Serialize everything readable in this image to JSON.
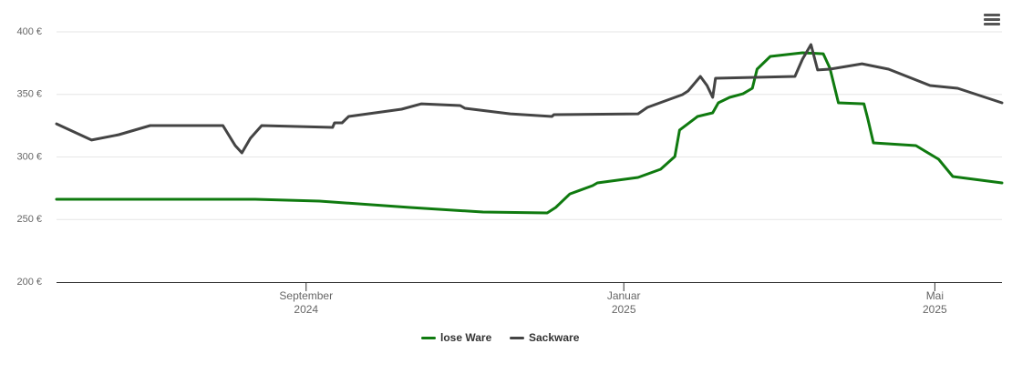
{
  "chart_data": {
    "type": "line",
    "xlim": [
      2024.4,
      2025.4
    ],
    "ylim": [
      200,
      400
    ],
    "xticks": [
      {
        "value": 2024.664,
        "label": "September\n2024"
      },
      {
        "value": 2025.0,
        "label": "Januar\n2025"
      },
      {
        "value": 2025.329,
        "label": "Mai\n2025"
      }
    ],
    "yticks": [
      {
        "value": 200,
        "label": "200 €"
      },
      {
        "value": 250,
        "label": "250 €"
      },
      {
        "value": 300,
        "label": "300 €"
      },
      {
        "value": 350,
        "label": "350 €"
      },
      {
        "value": 400,
        "label": "400 €"
      }
    ],
    "grid": true,
    "legend": "bottom",
    "series": [
      {
        "name": "lose Ware",
        "color": "#0f7a0f",
        "x": [
          2024.4,
          2024.61,
          2024.678,
          2024.774,
          2024.851,
          2024.919,
          2024.928,
          2024.943,
          2024.967,
          2024.972,
          2025.015,
          2025.039,
          2025.054,
          2025.059,
          2025.078,
          2025.094,
          2025.1,
          2025.112,
          2025.126,
          2025.136,
          2025.141,
          2025.155,
          2025.189,
          2025.211,
          2025.218,
          2025.227,
          2025.254,
          2025.258,
          2025.264,
          2025.309,
          2025.333,
          2025.348,
          2025.4
        ],
        "values": [
          266.2,
          266.2,
          264.7,
          259.6,
          256.0,
          255.3,
          259.6,
          270.5,
          277.1,
          279.3,
          283.6,
          290.2,
          300.4,
          321.5,
          332.4,
          335.3,
          343.3,
          347.6,
          350.5,
          354.9,
          370.2,
          380.4,
          383.3,
          382.5,
          370.9,
          343.3,
          342.5,
          330.9,
          311.3,
          309.1,
          298.2,
          284.4,
          279.3
        ]
      },
      {
        "name": "Sackware",
        "color": "#444444",
        "x": [
          2024.4,
          2024.437,
          2024.466,
          2024.499,
          2024.576,
          2024.589,
          2024.596,
          2024.605,
          2024.617,
          2024.692,
          2024.694,
          2024.702,
          2024.709,
          2024.765,
          2024.786,
          2024.827,
          2024.832,
          2024.88,
          2024.924,
          2024.926,
          2025.015,
          2025.025,
          2025.062,
          2025.068,
          2025.081,
          2025.088,
          2025.094,
          2025.097,
          2025.181,
          2025.189,
          2025.198,
          2025.205,
          2025.218,
          2025.252,
          2025.28,
          2025.324,
          2025.353,
          2025.4
        ],
        "values": [
          326.5,
          313.5,
          317.8,
          325.1,
          325.1,
          309.1,
          303.3,
          314.9,
          325.1,
          323.6,
          327.3,
          327.3,
          332.4,
          338.2,
          342.5,
          341.1,
          338.9,
          334.5,
          332.4,
          333.8,
          334.5,
          339.6,
          349.8,
          352.7,
          364.4,
          357.1,
          347.6,
          362.9,
          364.4,
          378.2,
          389.8,
          369.5,
          370.2,
          374.5,
          370.2,
          357.1,
          354.9,
          343.3
        ]
      }
    ]
  }
}
